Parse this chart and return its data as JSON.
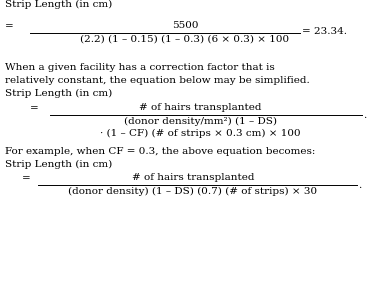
{
  "background_color": "#ffffff",
  "fs": 7.5,
  "text1": "Strip Length (in cm)",
  "num1": "5500",
  "den1": "(2.2) (1 – 0.15) (1 – 0.3) (6 × 0.3) × 100",
  "result1": "= 23.34.",
  "para1": "When a given facility has a correction factor that is",
  "para2": "relatively constant, the equation below may be simplified.",
  "text2": "Strip Length (in cm)",
  "num2": "# of hairs transplanted",
  "den2a": "(donor density/mm²) (1 – DS)",
  "den2b": "· (1 – CF) (# of strips × 0.3 cm) × 100",
  "para3": "For example, when CF = 0.3, the above equation becomes:",
  "text3": "Strip Length (in cm)",
  "num3": "# of hairs transplanted",
  "den3": "(donor density) (1 – DS) (0.7) (# of strips) × 30"
}
